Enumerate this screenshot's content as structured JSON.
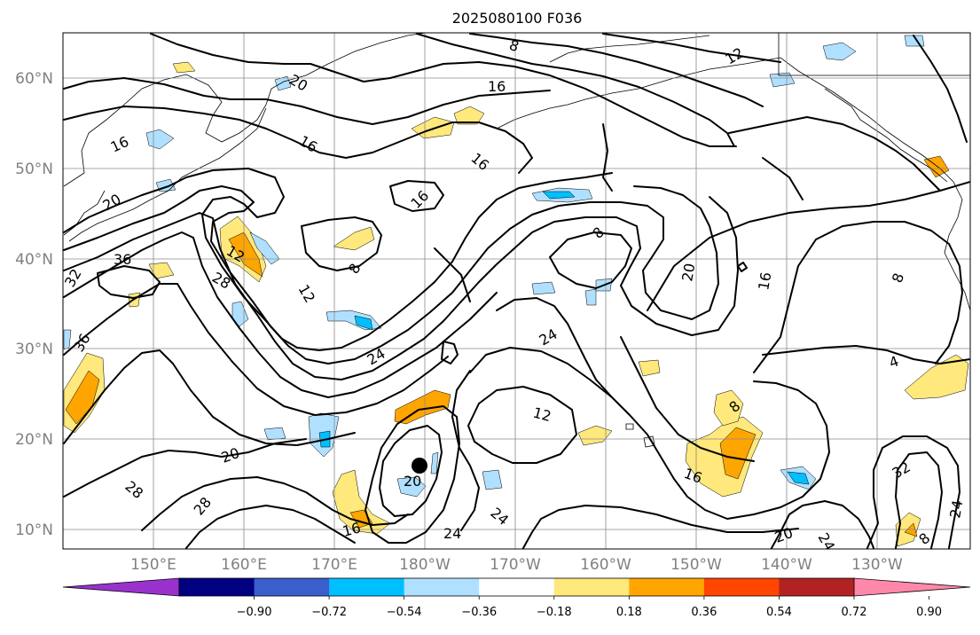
{
  "title": "2025080100 F036",
  "map": {
    "lat_labels": [
      "60°N",
      "50°N",
      "40°N",
      "30°N",
      "20°N",
      "10°N"
    ],
    "lon_labels": [
      "150°E",
      "160°E",
      "170°E",
      "180°W",
      "170°W",
      "160°W",
      "150°W",
      "140°W",
      "130°W"
    ],
    "contour_labels": [
      "8",
      "12",
      "16",
      "16",
      "16",
      "16",
      "20",
      "20",
      "36",
      "32",
      "28",
      "12",
      "8",
      "12",
      "16",
      "8",
      "20",
      "16",
      "8",
      "24",
      "24",
      "12",
      "4",
      "36",
      "20",
      "28",
      "28",
      "20",
      "16",
      "24",
      "24",
      "8",
      "20",
      "24",
      "32",
      "24",
      "8",
      "16"
    ],
    "storm_marker": "tropical-cyclone-center"
  },
  "colorbar": {
    "ticks": [
      "−0.90",
      "−0.72",
      "−0.54",
      "−0.36",
      "−0.18",
      "0.18",
      "0.36",
      "0.54",
      "0.72",
      "0.90"
    ],
    "colors": [
      "#9932cc",
      "#000080",
      "#3a5fcd",
      "#00bfff",
      "#b0e0ff",
      "#ffffff",
      "#ffe87c",
      "#ffa500",
      "#ff4500",
      "#b22222",
      "#ff88aa"
    ]
  }
}
